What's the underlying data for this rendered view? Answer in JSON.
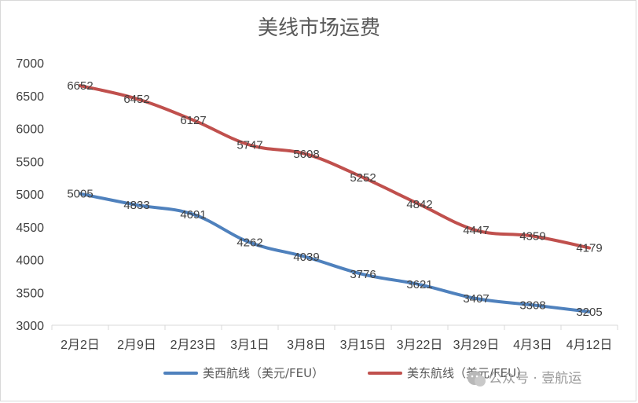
{
  "chart_data": {
    "type": "line",
    "title": "美线市场运费",
    "categories": [
      "2月2日",
      "2月9日",
      "2月23日",
      "3月1日",
      "3月8日",
      "3月15日",
      "3月22日",
      "3月29日",
      "4月3日",
      "4月12日"
    ],
    "ylim": [
      3000,
      7000
    ],
    "yticks": [
      3000,
      3500,
      4000,
      4500,
      5000,
      5500,
      6000,
      6500,
      7000
    ],
    "grid": false,
    "legend_position": "bottom",
    "series": [
      {
        "name": "美西航线（美元/FEU）",
        "color": "#4f81bd",
        "values": [
          5005,
          4833,
          4691,
          4262,
          4039,
          3776,
          3621,
          3407,
          3308,
          3205
        ]
      },
      {
        "name": "美东航线（美元/FEU）",
        "color": "#c0504d",
        "values": [
          6652,
          6452,
          6127,
          5747,
          5608,
          5252,
          4842,
          4447,
          4359,
          4179
        ]
      }
    ]
  },
  "watermark": {
    "text": "公众号 · 壹航运",
    "icon": "wechat-icon"
  }
}
